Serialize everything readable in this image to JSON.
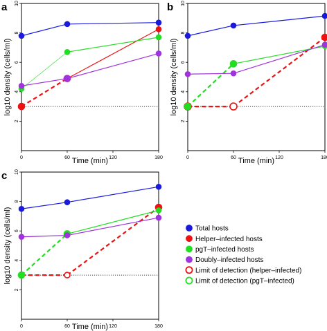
{
  "colors": {
    "total": "#1a1adf",
    "helper": "#ee1111",
    "pgt": "#22dd22",
    "doubly": "#a033dd",
    "lod_line": "#000000"
  },
  "legend": {
    "items": [
      {
        "label": "Total hosts",
        "color": "#1a1adf",
        "marker": "filled"
      },
      {
        "label": "Helper–infected hosts",
        "color": "#ee1111",
        "marker": "filled"
      },
      {
        "label": "pgT–infected hosts",
        "color": "#22dd22",
        "marker": "filled"
      },
      {
        "label": "Doubly–infected hosts",
        "color": "#a033dd",
        "marker": "filled"
      },
      {
        "label": "Limit of detection (helper–infected)",
        "color": "#ee1111",
        "marker": "open"
      },
      {
        "label": "Limit of detection (pgT–infected)",
        "color": "#22dd22",
        "marker": "open"
      }
    ]
  },
  "chart_data": [
    {
      "type": "line",
      "panel": "a",
      "xlabel": "Time (min)",
      "ylabel": "log10 density (cells/ml)",
      "xlim": [
        0,
        180
      ],
      "ylim": [
        0,
        10
      ],
      "xticks": [
        "0",
        "60",
        "120",
        "180"
      ],
      "yticks": [
        "2",
        "4",
        "6",
        "8",
        "10"
      ],
      "detection_limit": 3,
      "series": [
        {
          "name": "Total hosts",
          "color": "#1a1adf",
          "style": "solid",
          "points": [
            [
              0,
              7.8
            ],
            [
              60,
              8.6
            ],
            [
              180,
              8.7
            ]
          ],
          "open": [
            false,
            false,
            false
          ],
          "size": [
            4,
            4,
            4
          ]
        },
        {
          "name": "Helper–infected hosts",
          "color": "#ee1111",
          "segments": [
            "dashed",
            "solid"
          ],
          "points": [
            [
              0,
              3.0
            ],
            [
              60,
              4.9
            ],
            [
              180,
              8.25
            ]
          ],
          "open": [
            false,
            false,
            false
          ],
          "size": [
            5,
            5,
            4
          ]
        },
        {
          "name": "pgT–infected hosts",
          "color": "#22dd22",
          "segments": [
            "thin",
            "solid"
          ],
          "points": [
            [
              0,
              4.2
            ],
            [
              60,
              6.7
            ],
            [
              180,
              7.7
            ]
          ],
          "open": [
            false,
            false,
            false
          ],
          "size": [
            4,
            4,
            4
          ]
        },
        {
          "name": "Doubly–infected hosts",
          "color": "#a033dd",
          "style": "solid",
          "points": [
            [
              0,
              4.4
            ],
            [
              60,
              4.9
            ],
            [
              180,
              6.6
            ]
          ],
          "open": [
            false,
            false,
            false
          ],
          "size": [
            4,
            5,
            4
          ]
        }
      ]
    },
    {
      "type": "line",
      "panel": "b",
      "xlabel": "Time (min)",
      "ylabel": "log10 density (cells/ml)",
      "xlim": [
        0,
        180
      ],
      "ylim": [
        0,
        10
      ],
      "xticks": [
        "0",
        "60",
        "120",
        "180"
      ],
      "yticks": [
        "2",
        "4",
        "6",
        "8",
        "10"
      ],
      "detection_limit": 3,
      "series": [
        {
          "name": "Total hosts",
          "color": "#1a1adf",
          "style": "solid",
          "points": [
            [
              0,
              7.8
            ],
            [
              60,
              8.5
            ],
            [
              180,
              9.15
            ]
          ],
          "open": [
            false,
            false,
            false
          ],
          "size": [
            4,
            4,
            4
          ]
        },
        {
          "name": "Helper–infected hosts",
          "color": "#ee1111",
          "segments": [
            "dashed",
            "dashed"
          ],
          "points": [
            [
              0,
              3.0
            ],
            [
              60,
              3.0
            ],
            [
              180,
              7.7
            ]
          ],
          "open": [
            true,
            true,
            false
          ],
          "size": [
            5,
            5,
            5
          ]
        },
        {
          "name": "pgT–infected hosts",
          "color": "#22dd22",
          "segments": [
            "dashed",
            "solid"
          ],
          "points": [
            [
              0,
              3.0
            ],
            [
              60,
              5.9
            ],
            [
              180,
              7.1
            ]
          ],
          "open": [
            false,
            false,
            false
          ],
          "size": [
            5,
            5,
            4
          ]
        },
        {
          "name": "Doubly–infected hosts",
          "color": "#a033dd",
          "style": "solid",
          "points": [
            [
              0,
              5.2
            ],
            [
              60,
              5.25
            ],
            [
              180,
              7.2
            ]
          ],
          "open": [
            false,
            false,
            false
          ],
          "size": [
            4,
            4,
            4
          ]
        }
      ]
    },
    {
      "type": "line",
      "panel": "c",
      "xlabel": "Time (min)",
      "ylabel": "log10 density (cells/ml)",
      "xlim": [
        0,
        180
      ],
      "ylim": [
        0,
        10
      ],
      "xticks": [
        "0",
        "60",
        "120",
        "180"
      ],
      "yticks": [
        "2",
        "4",
        "6",
        "8",
        "10"
      ],
      "detection_limit": 3,
      "series": [
        {
          "name": "Total hosts",
          "color": "#1a1adf",
          "style": "solid",
          "points": [
            [
              0,
              7.5
            ],
            [
              60,
              7.95
            ],
            [
              180,
              9.0
            ]
          ],
          "open": [
            false,
            false,
            false
          ],
          "size": [
            4,
            4,
            4
          ]
        },
        {
          "name": "Helper–infected hosts",
          "color": "#ee1111",
          "segments": [
            "dashed",
            "dashed"
          ],
          "points": [
            [
              0,
              3.0
            ],
            [
              60,
              3.0
            ],
            [
              180,
              7.6
            ]
          ],
          "open": [
            true,
            true,
            false
          ],
          "size": [
            4,
            4,
            5
          ]
        },
        {
          "name": "pgT–infected hosts",
          "color": "#22dd22",
          "segments": [
            "dashed",
            "solid"
          ],
          "points": [
            [
              0,
              3.0
            ],
            [
              60,
              5.8
            ],
            [
              180,
              7.4
            ]
          ],
          "open": [
            false,
            false,
            false
          ],
          "size": [
            5,
            5,
            4
          ]
        },
        {
          "name": "Doubly–infected hosts",
          "color": "#a033dd",
          "style": "solid",
          "points": [
            [
              0,
              5.6
            ],
            [
              60,
              5.7
            ],
            [
              180,
              6.9
            ]
          ],
          "open": [
            false,
            false,
            false
          ],
          "size": [
            4,
            4,
            4
          ]
        }
      ]
    }
  ]
}
